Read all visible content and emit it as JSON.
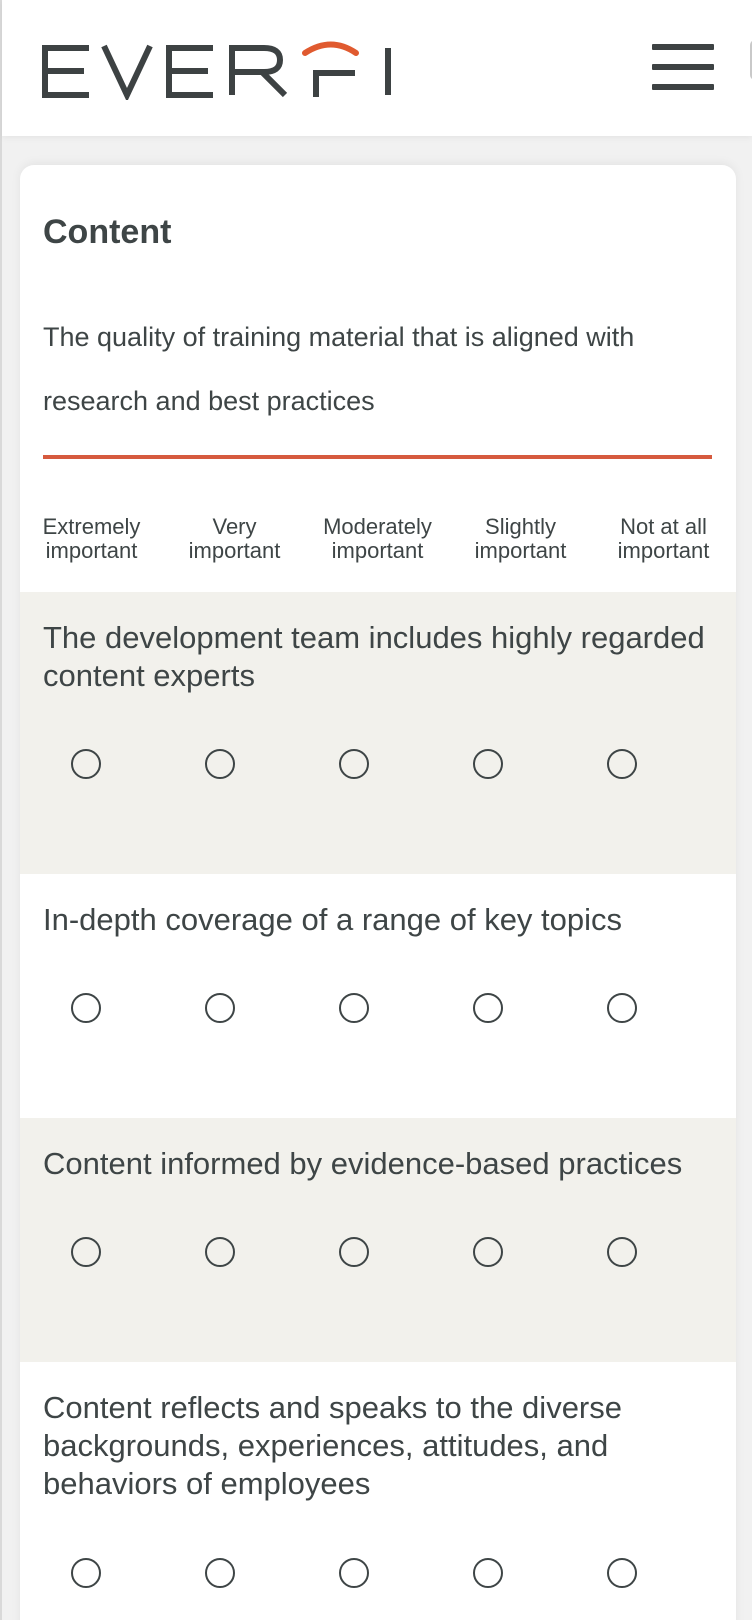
{
  "header": {
    "logo_text": "EVERFI",
    "menu_icon": "hamburger-menu-icon"
  },
  "colors": {
    "accent": "#d65a3e",
    "text": "#3e4546",
    "shaded_row": "#f2f1ec"
  },
  "section": {
    "title": "Content",
    "description": "The quality of training material that is aligned with research and best practices"
  },
  "scale": {
    "labels": [
      [
        "Extremely",
        "important"
      ],
      [
        "Very",
        "important"
      ],
      [
        "Moderately",
        "important"
      ],
      [
        "Slightly",
        "important"
      ],
      [
        "Not at all",
        "important"
      ]
    ]
  },
  "questions": [
    {
      "text": "The development team includes highly regarded content experts",
      "selected": null
    },
    {
      "text": "In-depth coverage of a range of key topics",
      "selected": null
    },
    {
      "text": "Content informed by evidence-based practices",
      "selected": null
    },
    {
      "text": "Content reflects and speaks to the diverse backgrounds, experiences, attitudes, and behaviors of employees",
      "selected": null
    }
  ]
}
